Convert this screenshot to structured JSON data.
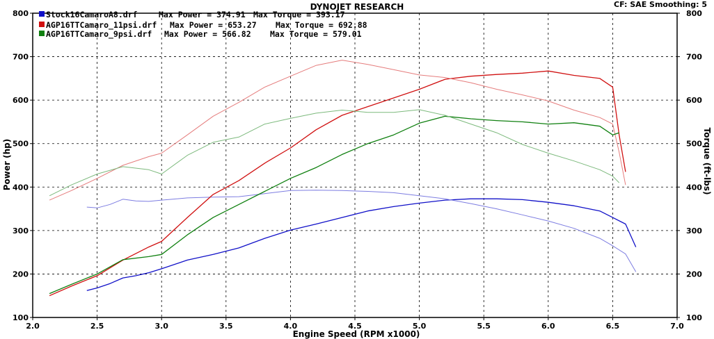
{
  "header": {
    "title": "DYNOJET RESEARCH",
    "settings": "CF: SAE  Smoothing: 5"
  },
  "legend": [
    {
      "file": "Stock16CamaroA8.drf",
      "power_label": "Max Power = 374.91",
      "torque_label": "Max Torque = 393.17",
      "color": "#1010c8"
    },
    {
      "file": "AGP16TTCamaro_11psi.drf",
      "power_label": "Max Power = 653.27",
      "torque_label": "Max Torque = 692.88",
      "color": "#d01010"
    },
    {
      "file": "AGP16TTCamaro_9psi.drf",
      "power_label": "Max Power = 566.82",
      "torque_label": "Max Torque = 579.01",
      "color": "#108010"
    }
  ],
  "chart_data": {
    "type": "line",
    "title": "DYNOJET RESEARCH",
    "xlabel": "Engine Speed (RPM x1000)",
    "ylabel": "Power (hp)",
    "y2label": "Torque (ft-lbs)",
    "xlim": [
      2.0,
      7.0
    ],
    "ylim": [
      100,
      800
    ],
    "y2lim": [
      100,
      800
    ],
    "x_ticks": [
      "2.0",
      "2.5",
      "3.0",
      "3.5",
      "4.0",
      "4.5",
      "5.0",
      "5.5",
      "6.0",
      "6.5",
      "7.0"
    ],
    "y_ticks": [
      "100",
      "200",
      "300",
      "400",
      "500",
      "600",
      "700",
      "800"
    ],
    "grid": true,
    "series": [
      {
        "name": "Stock16CamaroA8.drf",
        "quantity": "Power",
        "color": "#1010c8",
        "x": [
          2.42,
          2.5,
          2.6,
          2.7,
          2.8,
          2.9,
          3.0,
          3.2,
          3.4,
          3.6,
          3.8,
          4.0,
          4.2,
          4.4,
          4.6,
          4.8,
          5.0,
          5.2,
          5.4,
          5.6,
          5.8,
          6.0,
          6.2,
          6.4,
          6.5,
          6.6,
          6.68
        ],
        "y": [
          162,
          168,
          178,
          191,
          196,
          203,
          212,
          232,
          245,
          260,
          282,
          301,
          315,
          330,
          345,
          355,
          363,
          370,
          373,
          373,
          371,
          365,
          357,
          345,
          330,
          315,
          262
        ]
      },
      {
        "name": "Stock16CamaroA8.drf",
        "quantity": "Torque",
        "color": "#1010c8",
        "x": [
          2.42,
          2.5,
          2.6,
          2.7,
          2.8,
          2.9,
          3.0,
          3.2,
          3.4,
          3.6,
          3.8,
          4.0,
          4.2,
          4.4,
          4.6,
          4.8,
          5.0,
          5.2,
          5.4,
          5.6,
          5.8,
          6.0,
          6.2,
          6.4,
          6.5,
          6.6,
          6.68
        ],
        "y": [
          354,
          352,
          360,
          372,
          368,
          367,
          370,
          375,
          377,
          378,
          385,
          392,
          393,
          392,
          390,
          387,
          380,
          373,
          362,
          350,
          336,
          322,
          305,
          282,
          265,
          246,
          205
        ]
      },
      {
        "name": "AGP16TTCamaro_11psi.drf",
        "quantity": "Power",
        "color": "#d01010",
        "x": [
          2.13,
          2.3,
          2.5,
          2.7,
          2.9,
          3.0,
          3.2,
          3.4,
          3.6,
          3.8,
          4.0,
          4.2,
          4.4,
          4.6,
          4.8,
          5.0,
          5.2,
          5.4,
          5.6,
          5.8,
          6.0,
          6.2,
          6.4,
          6.5,
          6.55,
          6.6
        ],
        "y": [
          150,
          172,
          196,
          232,
          262,
          275,
          330,
          383,
          415,
          455,
          490,
          532,
          565,
          585,
          605,
          625,
          648,
          655,
          659,
          662,
          667,
          657,
          650,
          630,
          520,
          435
        ]
      },
      {
        "name": "AGP16TTCamaro_11psi.drf",
        "quantity": "Torque",
        "color": "#d01010",
        "x": [
          2.13,
          2.3,
          2.5,
          2.7,
          2.9,
          3.0,
          3.2,
          3.4,
          3.6,
          3.8,
          4.0,
          4.2,
          4.4,
          4.6,
          4.8,
          5.0,
          5.2,
          5.4,
          5.6,
          5.8,
          6.0,
          6.2,
          6.4,
          6.5,
          6.55,
          6.6
        ],
        "y": [
          370,
          392,
          420,
          450,
          470,
          478,
          520,
          563,
          595,
          630,
          655,
          680,
          692,
          682,
          670,
          658,
          652,
          640,
          625,
          612,
          598,
          577,
          560,
          545,
          480,
          405
        ]
      },
      {
        "name": "AGP16TTCamaro_9psi.drf",
        "quantity": "Power",
        "color": "#108010",
        "x": [
          2.13,
          2.3,
          2.5,
          2.7,
          2.9,
          3.0,
          3.2,
          3.4,
          3.6,
          3.8,
          4.0,
          4.2,
          4.4,
          4.6,
          4.8,
          5.0,
          5.2,
          5.4,
          5.6,
          5.8,
          6.0,
          6.2,
          6.4,
          6.5,
          6.55
        ],
        "y": [
          155,
          176,
          200,
          233,
          240,
          245,
          290,
          330,
          360,
          390,
          420,
          445,
          475,
          500,
          520,
          547,
          563,
          557,
          553,
          550,
          545,
          548,
          540,
          520,
          525
        ]
      },
      {
        "name": "AGP16TTCamaro_9psi.drf",
        "quantity": "Torque",
        "color": "#108010",
        "x": [
          2.13,
          2.3,
          2.5,
          2.7,
          2.9,
          3.0,
          3.2,
          3.4,
          3.6,
          3.8,
          4.0,
          4.2,
          4.4,
          4.6,
          4.8,
          5.0,
          5.2,
          5.4,
          5.6,
          5.8,
          6.0,
          6.2,
          6.4,
          6.5,
          6.55
        ],
        "y": [
          380,
          405,
          430,
          447,
          440,
          430,
          473,
          503,
          515,
          545,
          558,
          570,
          577,
          572,
          572,
          578,
          565,
          545,
          525,
          498,
          478,
          460,
          440,
          425,
          410
        ]
      }
    ]
  }
}
